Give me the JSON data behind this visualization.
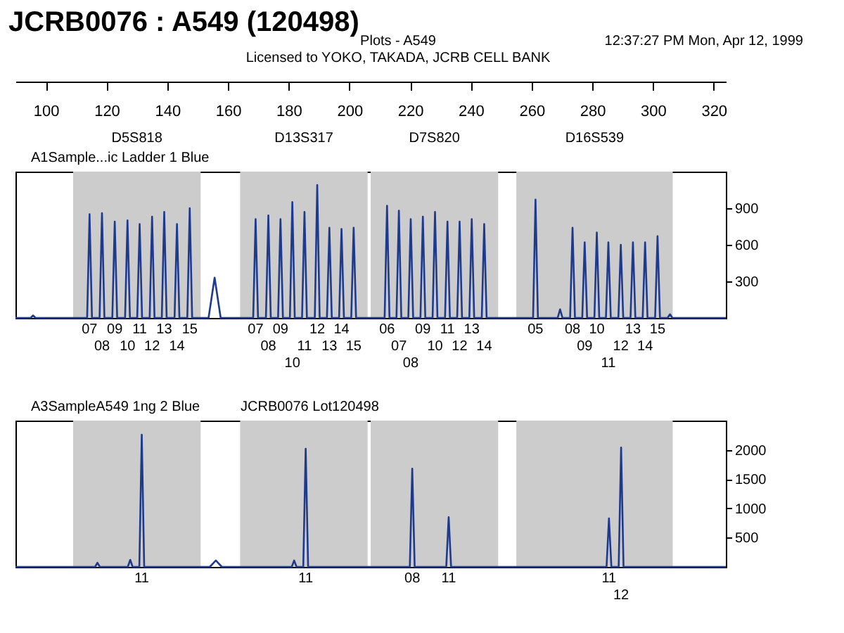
{
  "chart_data": [
    {
      "type": "line",
      "title": "JCRB0076 : A549 (120498)",
      "annotations": [
        "Plots - A549",
        "12:37:27 PM Mon, Apr 12, 1999",
        "Licensed to YOKO, TAKADA, JCRB CELL BANK",
        "A1Sample...ic Ladder  1 Blue",
        {
          "text": "07",
          "x": 114.4,
          "y": 0
        },
        {
          "text": "08",
          "x": 118.5,
          "y": 0
        },
        {
          "text": "09",
          "x": 122.7,
          "y": 0
        },
        {
          "text": "10",
          "x": 126.9,
          "y": 0
        },
        {
          "text": "11",
          "x": 130.9,
          "y": 0
        },
        {
          "text": "12",
          "x": 135.0,
          "y": 0
        },
        {
          "text": "13",
          "x": 139.0,
          "y": 0
        },
        {
          "text": "14",
          "x": 143.2,
          "y": 0
        },
        {
          "text": "15",
          "x": 147.4,
          "y": 0
        },
        {
          "text": "07",
          "x": 169.1,
          "y": 0
        },
        {
          "text": "08",
          "x": 173.3,
          "y": 0
        },
        {
          "text": "09",
          "x": 177.3,
          "y": 0
        },
        {
          "text": "10",
          "x": 181.2,
          "y": 0
        },
        {
          "text": "11",
          "x": 185.2,
          "y": 0
        },
        {
          "text": "12",
          "x": 189.4,
          "y": 0
        },
        {
          "text": "13",
          "x": 193.4,
          "y": 0
        },
        {
          "text": "14",
          "x": 197.4,
          "y": 0
        },
        {
          "text": "15",
          "x": 201.4,
          "y": 0
        },
        {
          "text": "06",
          "x": 212.4,
          "y": 0
        },
        {
          "text": "07",
          "x": 216.3,
          "y": 0
        },
        {
          "text": "08",
          "x": 220.2,
          "y": 0
        },
        {
          "text": "09",
          "x": 224.2,
          "y": 0
        },
        {
          "text": "10",
          "x": 228.2,
          "y": 0
        },
        {
          "text": "11",
          "x": 232.3,
          "y": 0
        },
        {
          "text": "12",
          "x": 236.3,
          "y": 0
        },
        {
          "text": "13",
          "x": 240.3,
          "y": 0
        },
        {
          "text": "14",
          "x": 244.4,
          "y": 0
        },
        {
          "text": "05",
          "x": 261.3,
          "y": 0
        },
        {
          "text": "08",
          "x": 273.5,
          "y": 0
        },
        {
          "text": "09",
          "x": 277.5,
          "y": 0
        },
        {
          "text": "10",
          "x": 281.5,
          "y": 0
        },
        {
          "text": "11",
          "x": 285.3,
          "y": 0
        },
        {
          "text": "12",
          "x": 289.4,
          "y": 0
        },
        {
          "text": "13",
          "x": 293.4,
          "y": 0
        },
        {
          "text": "14",
          "x": 297.4,
          "y": 0
        },
        {
          "text": "15",
          "x": 301.5,
          "y": 0
        }
      ],
      "xlim": [
        90,
        324
      ],
      "xticks": [
        100,
        120,
        140,
        160,
        180,
        200,
        220,
        240,
        260,
        280,
        300,
        320
      ],
      "ylim": [
        0,
        1200
      ],
      "yticks": [
        300,
        600,
        900
      ],
      "bands": [
        {
          "axis": "x",
          "from": 109,
          "to": 151,
          "label": "D5S818",
          "color": "#cccccc"
        },
        {
          "axis": "x",
          "from": 164,
          "to": 206,
          "label": "D13S317",
          "color": "#cccccc"
        },
        {
          "axis": "x",
          "from": 207,
          "to": 249,
          "label": "D7S820",
          "color": "#cccccc"
        },
        {
          "axis": "x",
          "from": 255,
          "to": 306.5,
          "label": "D16S539",
          "color": "#cccccc"
        }
      ],
      "series": [
        {
          "color": "#1f3a8c",
          "x": [
            90,
            95.0,
            95.8,
            96.6,
            113.6,
            114.4,
            115.2,
            117.7,
            118.5,
            119.3,
            121.9,
            122.7,
            123.5,
            126.1,
            126.9,
            127.7,
            130.1,
            130.9,
            131.7,
            134.2,
            135.0,
            135.8,
            138.2,
            139.0,
            139.8,
            142.4,
            143.2,
            144.0,
            146.6,
            147.4,
            148.2,
            153.6,
            155.6,
            157.6,
            168.3,
            169.1,
            169.9,
            172.5,
            173.3,
            174.1,
            176.5,
            177.3,
            178.1,
            180.4,
            181.2,
            182.0,
            184.4,
            185.2,
            186.0,
            188.6,
            189.4,
            190.2,
            192.6,
            193.4,
            194.2,
            196.6,
            197.4,
            198.2,
            200.6,
            201.4,
            202.2,
            211.6,
            212.4,
            213.2,
            215.5,
            216.3,
            217.1,
            219.4,
            220.2,
            221.0,
            223.4,
            224.2,
            225.0,
            227.4,
            228.2,
            229.0,
            231.5,
            232.3,
            233.1,
            235.5,
            236.3,
            237.1,
            239.5,
            240.3,
            241.1,
            243.6,
            244.4,
            245.2,
            260.5,
            261.3,
            262.1,
            268.6,
            269.4,
            270.2,
            272.7,
            273.5,
            274.3,
            276.7,
            277.5,
            278.3,
            280.7,
            281.5,
            282.3,
            284.5,
            285.3,
            286.1,
            288.6,
            289.4,
            290.2,
            292.6,
            293.4,
            294.2,
            296.6,
            297.4,
            298.2,
            300.7,
            301.5,
            302.3,
            304.8,
            305.6,
            306.4,
            324
          ],
          "values": [
            0,
            0,
            20,
            0,
            0,
            850,
            0,
            0,
            860,
            0,
            0,
            790,
            0,
            0,
            800,
            0,
            0,
            770,
            0,
            0,
            830,
            0,
            0,
            870,
            0,
            0,
            770,
            0,
            0,
            900,
            0,
            0,
            330,
            0,
            0,
            810,
            0,
            0,
            840,
            0,
            0,
            810,
            0,
            0,
            950,
            0,
            0,
            870,
            0,
            0,
            1090,
            0,
            0,
            740,
            0,
            0,
            730,
            0,
            0,
            740,
            0,
            0,
            920,
            0,
            0,
            880,
            0,
            0,
            810,
            0,
            0,
            830,
            0,
            0,
            870,
            0,
            0,
            790,
            0,
            0,
            790,
            0,
            0,
            810,
            0,
            0,
            770,
            0,
            0,
            970,
            0,
            0,
            70,
            0,
            0,
            740,
            0,
            0,
            620,
            0,
            0,
            700,
            0,
            0,
            620,
            0,
            0,
            600,
            0,
            0,
            620,
            0,
            0,
            620,
            0,
            0,
            670,
            0,
            0,
            30,
            0,
            0
          ]
        }
      ]
    },
    {
      "type": "line",
      "annotations": [
        "A3SampleA549 1ng   2 Blue",
        "JCRB0076 Lot120498",
        {
          "text": "11",
          "x": 131.6,
          "y": 0
        },
        {
          "text": "11",
          "x": 185.6,
          "y": 0
        },
        {
          "text": "08",
          "x": 220.7,
          "y": 0
        },
        {
          "text": "11",
          "x": 232.7,
          "y": 0
        },
        {
          "text": "11",
          "x": 285.5,
          "y": 0
        },
        {
          "text": "12",
          "x": 289.5,
          "y": 0
        }
      ],
      "xlim": [
        90,
        324
      ],
      "tick_labels": "y",
      "ylim": [
        0,
        2500
      ],
      "yticks": [
        500,
        1000,
        1500,
        2000
      ],
      "bands": [
        {
          "axis": "x",
          "from": 109,
          "to": 151,
          "color": "#cccccc"
        },
        {
          "axis": "x",
          "from": 164,
          "to": 206,
          "color": "#cccccc"
        },
        {
          "axis": "x",
          "from": 207,
          "to": 249,
          "color": "#cccccc"
        },
        {
          "axis": "x",
          "from": 255,
          "to": 306.5,
          "color": "#cccccc"
        }
      ],
      "series": [
        {
          "color": "#1f3a8c",
          "x": [
            90,
            116.2,
            117.0,
            117.8,
            127.0,
            127.8,
            128.6,
            130.8,
            131.6,
            132.4,
            154,
            156,
            158,
            181.0,
            181.8,
            182.6,
            184.8,
            185.6,
            186.4,
            219.9,
            220.7,
            221.5,
            231.9,
            232.7,
            233.5,
            284.7,
            285.5,
            286.3,
            288.7,
            289.5,
            290.3,
            324
          ],
          "values": [
            0,
            0,
            70,
            0,
            0,
            120,
            0,
            0,
            2260,
            0,
            0,
            110,
            0,
            0,
            110,
            0,
            0,
            2020,
            0,
            0,
            1680,
            0,
            0,
            850,
            0,
            0,
            830,
            0,
            0,
            2040,
            0,
            0
          ]
        }
      ]
    }
  ]
}
